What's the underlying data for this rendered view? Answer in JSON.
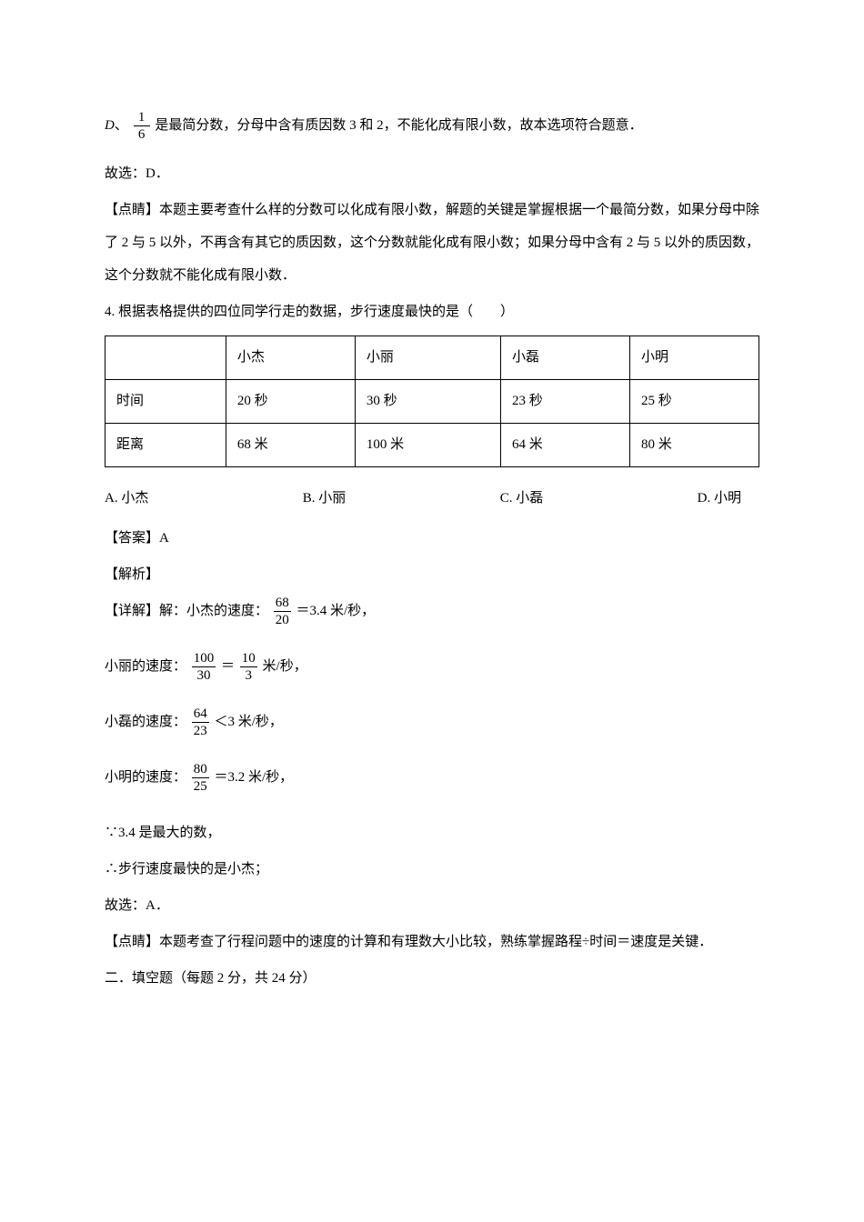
{
  "line1_prefix": "、",
  "frac_1_6_num": "1",
  "frac_1_6_den": "6",
  "line1_suffix": "是最简分数，分母中含有质因数 3 和 2，不能化成有限小数，故本选项符合题意．",
  "line2": "故选：D．",
  "line3": "【点睛】本题主要考查什么样的分数可以化成有限小数，解题的关键是掌握根据一个最简分数，如果分母中除了 2 与 5 以外，不再含有其它的质因数，这个分数就能化成有限小数；如果分母中含有 2 与 5 以外的质因数，这个分数就不能化成有限小数．",
  "q4_stem": "4. 根据表格提供的四位同学行走的数据，步行速度最快的是（　　）",
  "table": {
    "headers": [
      "",
      "小杰",
      "小丽",
      "小磊",
      "小明"
    ],
    "rows": [
      [
        "时间",
        "20 秒",
        "30 秒",
        "23 秒",
        "25 秒"
      ],
      [
        "距离",
        "68 米",
        "100 米",
        "64 米",
        "80 米"
      ]
    ]
  },
  "options": {
    "a": "A. 小杰",
    "b": "B. 小丽",
    "c": "C. 小磊",
    "d": "D. 小明"
  },
  "answer_label": "【答案】A",
  "analysis_label": "【解析】",
  "detail_prefix": "【详解】解：小杰的速度：",
  "frac_68_20_num": "68",
  "frac_68_20_den": "20",
  "detail_suffix_1": "＝3.4 米/秒，",
  "line_xiaoli_prefix": "小丽的速度：",
  "frac_100_30_num": "100",
  "frac_100_30_den": "30",
  "eq_sign": "＝",
  "frac_10_3_num": "10",
  "frac_10_3_den": "3",
  "line_xiaoli_suffix": " 米/秒，",
  "line_xiaolei_prefix": "小磊的速度：",
  "frac_64_23_num": "64",
  "frac_64_23_den": "23",
  "line_xiaolei_suffix": "＜3 米/秒，",
  "line_xiaoming_prefix": "小明的速度：",
  "frac_80_25_num": "80",
  "frac_80_25_den": "25",
  "line_xiaoming_suffix": "＝3.2 米/秒，",
  "conclusion_1": "∵3.4 是最大的数，",
  "conclusion_2": "∴步行速度最快的是小杰；",
  "conclusion_3": "故选：A．",
  "dianqing": "【点睛】本题考查了行程问题中的速度的计算和有理数大小比较，熟练掌握路程÷时间＝速度是关键．",
  "section2": "二．填空题（每题 2 分，共 24 分）"
}
